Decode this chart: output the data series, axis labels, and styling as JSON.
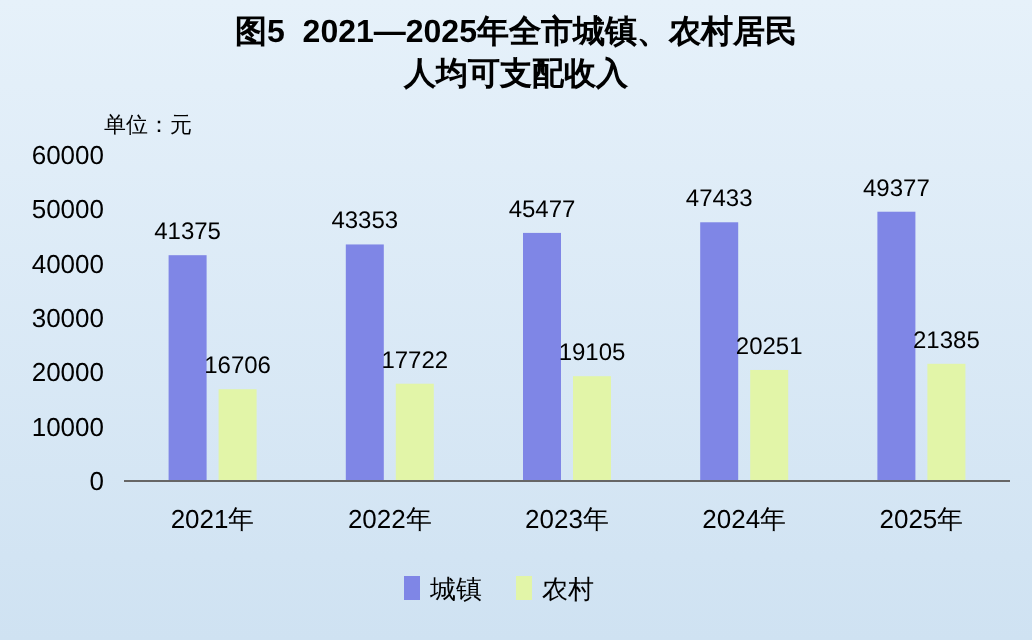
{
  "chart_data": {
    "type": "bar",
    "title": "图5  2021—2025年全市城镇、农村居民人均可支配收入",
    "annotations": [
      "单位：元"
    ],
    "categories": [
      "2021年",
      "2022年",
      "2023年",
      "2024年",
      "2025年"
    ],
    "series": [
      {
        "name": "城镇",
        "color": "#7f86e6",
        "values": [
          41375,
          43353,
          45477,
          47433,
          49377
        ]
      },
      {
        "name": "农村",
        "color": "#e2f5a8",
        "values": [
          16706,
          17722,
          19105,
          20251,
          21385
        ]
      }
    ],
    "ylim": [
      0,
      60000
    ],
    "yticks": [
      0,
      10000,
      20000,
      30000,
      40000,
      50000,
      60000
    ],
    "data_labels": true,
    "legend": "bottom"
  }
}
